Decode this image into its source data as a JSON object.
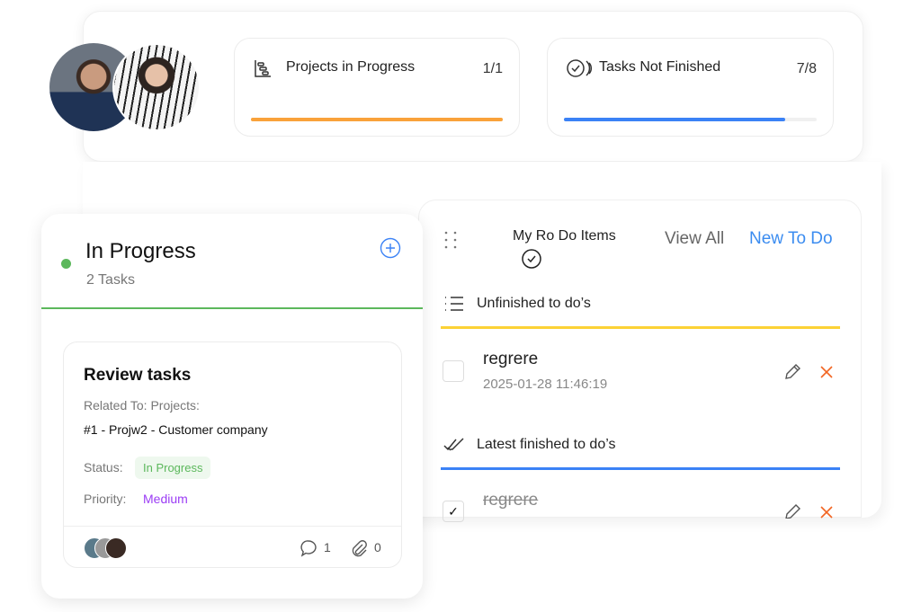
{
  "stats": [
    {
      "title": "Projects in Progress",
      "value": "1/1",
      "progress": 1.0,
      "color": "#f9a23b",
      "icon": "gantt-icon"
    },
    {
      "title": "Tasks Not Finished",
      "value": "7/8",
      "progress": 0.875,
      "color": "#3b82f6",
      "icon": "check-circle-waves-icon"
    }
  ],
  "column": {
    "title": "In Progress",
    "count": "2 Tasks",
    "dot_color": "#5cb85c",
    "accent": "#5cb85c"
  },
  "task": {
    "title": "Review tasks",
    "related_label": "Related To: Projects:",
    "related_value": "#1 - Projw2 - Customer company",
    "status_label": "Status:",
    "status_value": "In Progress",
    "priority_label": "Priority:",
    "priority_value": "Medium",
    "priority_color": "#9b3cf5",
    "comments": "1",
    "attachments": "0"
  },
  "todo": {
    "title": "My Ro Do Items",
    "view_all": "View All",
    "new_todo": "New To Do",
    "unfinished_header": "Unfinished to do’s",
    "finished_header": "Latest finished to do’s",
    "unfinished": [
      {
        "name": "regrere",
        "date": "2025-01-28 11:46:19",
        "checked": false
      }
    ],
    "finished": [
      {
        "name": "regrere",
        "checked": true
      }
    ]
  }
}
